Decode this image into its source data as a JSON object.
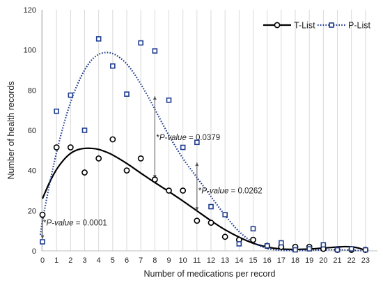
{
  "chart_data": {
    "type": "scatter",
    "xlabel": "Number of medications per record",
    "ylabel": "Number of health records",
    "xlim": [
      0,
      23
    ],
    "ylim": [
      0,
      120
    ],
    "x_ticks": [
      "0",
      "1",
      "2",
      "3",
      "4",
      "5",
      "6",
      "7",
      "8",
      "9",
      "10",
      "11",
      "12",
      "13",
      "14",
      "15",
      "16",
      "17",
      "18",
      "19",
      "20",
      "21",
      "22",
      "23"
    ],
    "y_ticks": [
      "0",
      "20",
      "40",
      "60",
      "80",
      "100",
      "120"
    ],
    "grid": "vertical",
    "legend_position": "top-right",
    "x": [
      0,
      1,
      2,
      3,
      4,
      5,
      6,
      7,
      8,
      9,
      10,
      11,
      12,
      13,
      14,
      15,
      16,
      17,
      18,
      19,
      20,
      21,
      22,
      23
    ],
    "series": [
      {
        "name": "T-List",
        "marker": "circle",
        "line_style": "solid",
        "color": "#000000",
        "points": [
          18,
          51.5,
          51.5,
          39,
          46,
          55.5,
          40,
          46,
          35.5,
          30,
          30,
          15,
          14,
          7,
          5.5,
          5.5,
          2.5,
          2,
          2,
          2,
          1,
          0.5,
          0.5,
          0.5
        ],
        "fit": [
          [
            0,
            26
          ],
          [
            0.5,
            34
          ],
          [
            1,
            40.5
          ],
          [
            1.5,
            45.2
          ],
          [
            2,
            48.5
          ],
          [
            2.5,
            50.3
          ],
          [
            3,
            51
          ],
          [
            3.5,
            51
          ],
          [
            4,
            50.5
          ],
          [
            4.5,
            49.3
          ],
          [
            5,
            47.7
          ],
          [
            6,
            43.5
          ],
          [
            7,
            38.7
          ],
          [
            8,
            34
          ],
          [
            9,
            29.5
          ],
          [
            10,
            24.8
          ],
          [
            11,
            19.9
          ],
          [
            12,
            15
          ],
          [
            13,
            10.5
          ],
          [
            14,
            6.8
          ],
          [
            15,
            3.8
          ],
          [
            16,
            1.9
          ],
          [
            17,
            0.9
          ],
          [
            18,
            0.7
          ],
          [
            19,
            0.9
          ],
          [
            20,
            1.4
          ],
          [
            21,
            1.9
          ],
          [
            21.5,
            2.1
          ],
          [
            22,
            2.0
          ],
          [
            22.5,
            1.4
          ],
          [
            23,
            0.2
          ]
        ]
      },
      {
        "name": "P-List",
        "marker": "square",
        "line_style": "dotted",
        "color": "#1f3d8f",
        "points": [
          4.5,
          69.5,
          77.5,
          60,
          105.5,
          92,
          78,
          103.5,
          99.5,
          75,
          51.5,
          54,
          22,
          18,
          3.5,
          11,
          2.5,
          4,
          0.5,
          1,
          3,
          0.5,
          1,
          0.5
        ],
        "fit": [
          [
            -0.15,
            8
          ],
          [
            0,
            15
          ],
          [
            0.5,
            33
          ],
          [
            1,
            49
          ],
          [
            1.5,
            62.5
          ],
          [
            2,
            74
          ],
          [
            2.5,
            83
          ],
          [
            3,
            90
          ],
          [
            3.5,
            95
          ],
          [
            4,
            97.8
          ],
          [
            4.5,
            98.7
          ],
          [
            5,
            98.2
          ],
          [
            5.5,
            96.2
          ],
          [
            6,
            93
          ],
          [
            6.5,
            88.5
          ],
          [
            7,
            83
          ],
          [
            7.5,
            77
          ],
          [
            8,
            70.5
          ],
          [
            9,
            57.5
          ],
          [
            10,
            46
          ],
          [
            11,
            36.5
          ],
          [
            12,
            27
          ],
          [
            13,
            17.7
          ],
          [
            14,
            9.6
          ],
          [
            15,
            4.2
          ],
          [
            16,
            1.2
          ],
          [
            17,
            0.3
          ],
          [
            18,
            0.2
          ],
          [
            19,
            0.3
          ],
          [
            20,
            0.5
          ],
          [
            21,
            0.6
          ],
          [
            22,
            0.3
          ],
          [
            23,
            0
          ]
        ]
      }
    ],
    "annotations": [
      {
        "text_prefix": "*",
        "text_italic": "P-value",
        "text_value": " = 0.0001",
        "x": 0,
        "from": 6,
        "to": 18,
        "label_x": 0.05,
        "label_y": 14
      },
      {
        "text_prefix": "*",
        "text_italic": "P-value",
        "text_value": " = 0.0379",
        "x": 8,
        "from": 36,
        "to": 77,
        "label_x": 8.1,
        "label_y": 56.5
      },
      {
        "text_prefix": "*",
        "text_italic": "P-value",
        "text_value": " = 0.0262",
        "x": 11,
        "from": 20,
        "to": 44,
        "label_x": 11.1,
        "label_y": 30
      }
    ]
  }
}
